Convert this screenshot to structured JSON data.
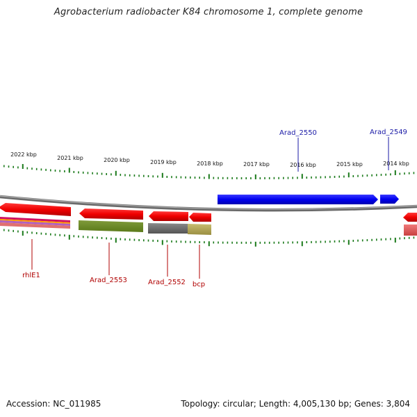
{
  "title": "Agrobacterium radiobacter K84 chromosome 1, complete genome",
  "footer": {
    "accession": "Accession: NC_011985",
    "summary": "Topology: circular; Length: 4,005,130 bp; Genes: 3,804"
  },
  "colors": {
    "forward_gene": "#0000ee",
    "reverse_gene": "#ee0000",
    "forward_label": "#1a1aa6",
    "reverse_label": "#b00000",
    "tick": "#1a7a1a",
    "backbone": "#8a8a8a"
  },
  "scale_labels": [
    "2022 kbp",
    "2021 kbp",
    "2020 kbp",
    "2019 kbp",
    "2018 kbp",
    "2017 kbp",
    "2016 kbp",
    "2015 kbp",
    "2014 kbp"
  ],
  "genes": [
    {
      "id": "Arad_2550",
      "label": "Arad_2550",
      "strand": "forward"
    },
    {
      "id": "Arad_2549",
      "label": "Arad_2549",
      "strand": "forward"
    },
    {
      "id": "rhlE1",
      "label": "rhlE1",
      "strand": "reverse"
    },
    {
      "id": "Arad_2553",
      "label": "Arad_2553",
      "strand": "reverse"
    },
    {
      "id": "Arad_2552",
      "label": "Arad_2552",
      "strand": "reverse"
    },
    {
      "id": "bcp",
      "label": "bcp",
      "strand": "reverse"
    }
  ]
}
